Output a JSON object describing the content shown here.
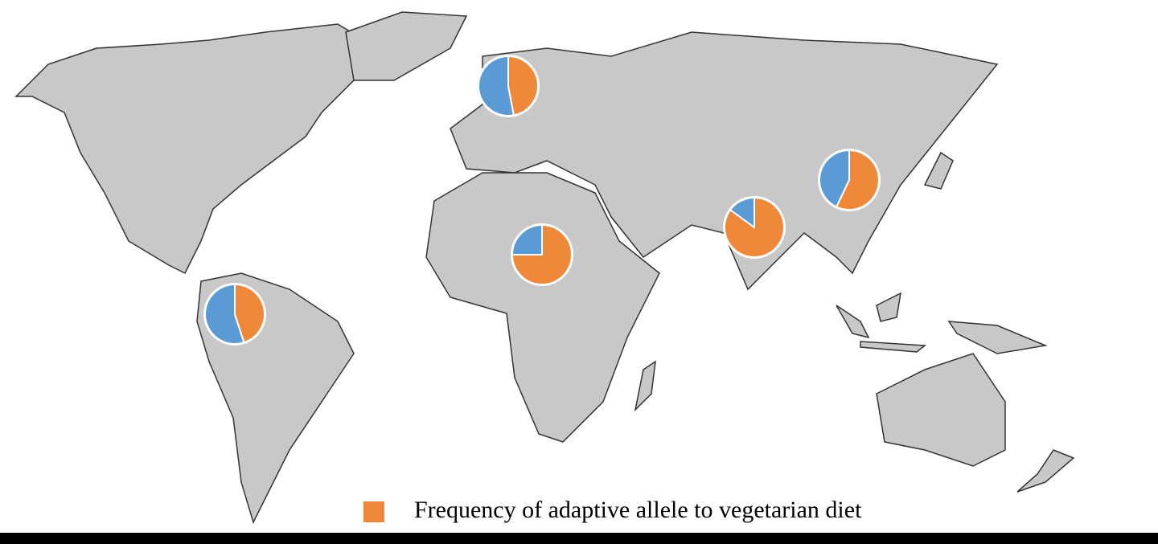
{
  "chart_data": {
    "type": "pie",
    "series": [
      {
        "name": "Frequency of adaptive allele to vegetarian diet",
        "color": "#f0883a",
        "values": [
          47,
          45,
          75,
          85,
          57
        ]
      }
    ],
    "remainder_color": "#5b9bd5"
  }
}
